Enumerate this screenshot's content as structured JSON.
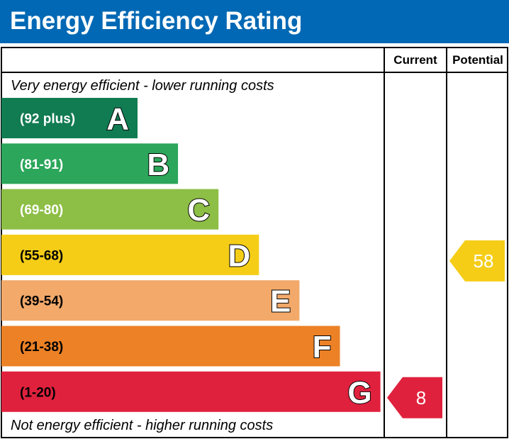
{
  "title": "Energy Efficiency Rating",
  "chart_data": {
    "type": "bar",
    "columns": {
      "current": "Current",
      "potential": "Potential"
    },
    "top_note": "Very energy efficient - lower running costs",
    "bottom_note": "Not energy efficient - higher running costs",
    "bands": [
      {
        "letter": "A",
        "range": "(92 plus)",
        "color": "#117b52"
      },
      {
        "letter": "B",
        "range": "(81-91)",
        "color": "#2ba65a"
      },
      {
        "letter": "C",
        "range": "(69-80)",
        "color": "#8dbe45"
      },
      {
        "letter": "D",
        "range": "(55-68)",
        "color": "#f5cd17"
      },
      {
        "letter": "E",
        "range": "(39-54)",
        "color": "#f2a96a"
      },
      {
        "letter": "F",
        "range": "(21-38)",
        "color": "#ec8126"
      },
      {
        "letter": "G",
        "range": "(1-20)",
        "color": "#e0213d"
      }
    ],
    "current": {
      "value": 8,
      "band": "G",
      "color": "#e0213d"
    },
    "potential": {
      "value": 58,
      "band": "D",
      "color": "#f5cd17"
    }
  }
}
